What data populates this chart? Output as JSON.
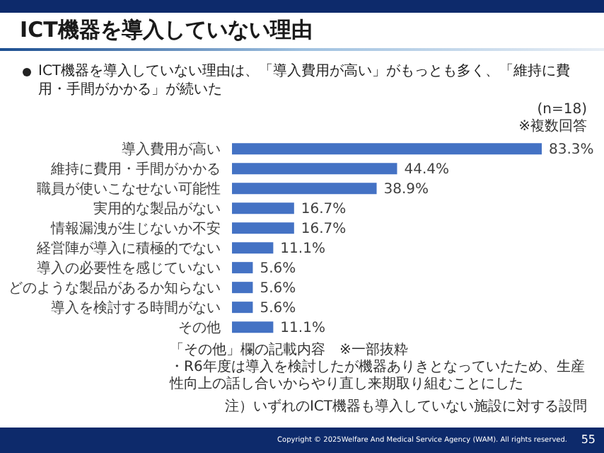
{
  "chart_data": {
    "type": "bar",
    "orientation": "horizontal",
    "title": "ICT機器を導入していない理由",
    "subtitle": "ICT機器を導入していない理由は、「導入費用が高い」がもっとも多く、「維持に費用・手間がかかる」が続いた",
    "categories": [
      "導入費用が高い",
      "維持に費用・手間がかかる",
      "職員が使いこなせない可能性",
      "実用的な製品がない",
      "情報漏洩が生じないか不安",
      "経営陣が導入に積極的でない",
      "導入の必要性を感じていない",
      "どのような製品があるか知らない",
      "導入を検討する時間がない",
      "その他"
    ],
    "values": [
      83.3,
      44.4,
      38.9,
      16.7,
      16.7,
      11.1,
      5.6,
      5.6,
      5.6,
      11.1
    ],
    "value_labels": [
      "83.3%",
      "44.4%",
      "38.9%",
      "16.7%",
      "16.7%",
      "11.1%",
      "5.6%",
      "5.6%",
      "5.6%",
      "11.1%"
    ],
    "color": "#4472c4",
    "annotations": [
      "(n=18)",
      "※複数回答",
      "「その他」欄の記載内容　※一部抜粋",
      "・R6年度は導入を検討したが機器ありきとなっていたため、生産性向上の話し合いからやり直し来期取り組むことにした",
      "注）いずれのICT機器も導入していない施設に対する設問",
      "Copyright © 2025Welfare And Medical Service Agency (WAM). All rights reserved.",
      "55"
    ]
  }
}
